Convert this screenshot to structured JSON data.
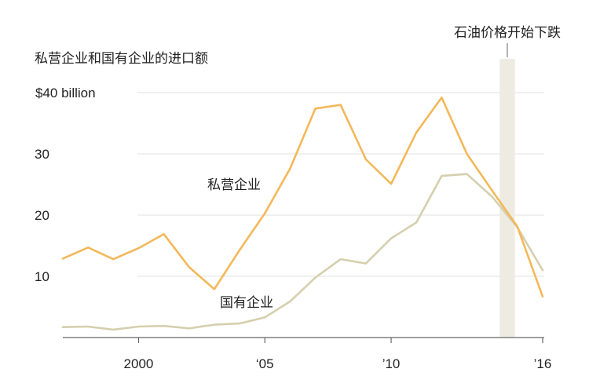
{
  "chart_data": {
    "type": "line",
    "title": "私营企业和国有企业的进口额",
    "xlabel": "",
    "ylabel": "",
    "x": [
      1997,
      1998,
      1999,
      2000,
      2001,
      2002,
      2003,
      2004,
      2005,
      2006,
      2007,
      2008,
      2009,
      2010,
      2011,
      2012,
      2013,
      2014,
      2015,
      2016
    ],
    "series": [
      {
        "name": "私营企业",
        "color": "#f3b85a",
        "values": [
          12.9,
          14.7,
          12.8,
          14.6,
          16.9,
          11.5,
          7.9,
          14.3,
          20.3,
          27.6,
          37.4,
          38.0,
          29.1,
          25.1,
          33.5,
          39.2,
          30.0,
          24.0,
          18.1,
          6.7
        ]
      },
      {
        "name": "国有企业",
        "color": "#d6cfae",
        "values": [
          1.7,
          1.8,
          1.3,
          1.8,
          1.9,
          1.5,
          2.1,
          2.3,
          3.3,
          5.9,
          9.8,
          12.8,
          12.1,
          16.2,
          18.8,
          26.4,
          26.7,
          23.0,
          18.0,
          11.0
        ]
      }
    ],
    "y_ticks": [
      {
        "value": 10,
        "label": "10"
      },
      {
        "value": 20,
        "label": "20"
      },
      {
        "value": 30,
        "label": "30"
      },
      {
        "value": 40,
        "label": "$40 billion"
      }
    ],
    "x_ticks": [
      {
        "value": 2000,
        "label": "2000"
      },
      {
        "value": 2005,
        "label": "‘05"
      },
      {
        "value": 2010,
        "label": "’10"
      },
      {
        "value": 2016,
        "label": "’16"
      }
    ],
    "xlim": [
      1997,
      2016
    ],
    "ylim": [
      0,
      40
    ],
    "grid": true,
    "annotation": {
      "label": "石油价格开始下跌",
      "x_start": 2014.3,
      "x_end": 2014.9,
      "color": "#eeebe2"
    }
  }
}
